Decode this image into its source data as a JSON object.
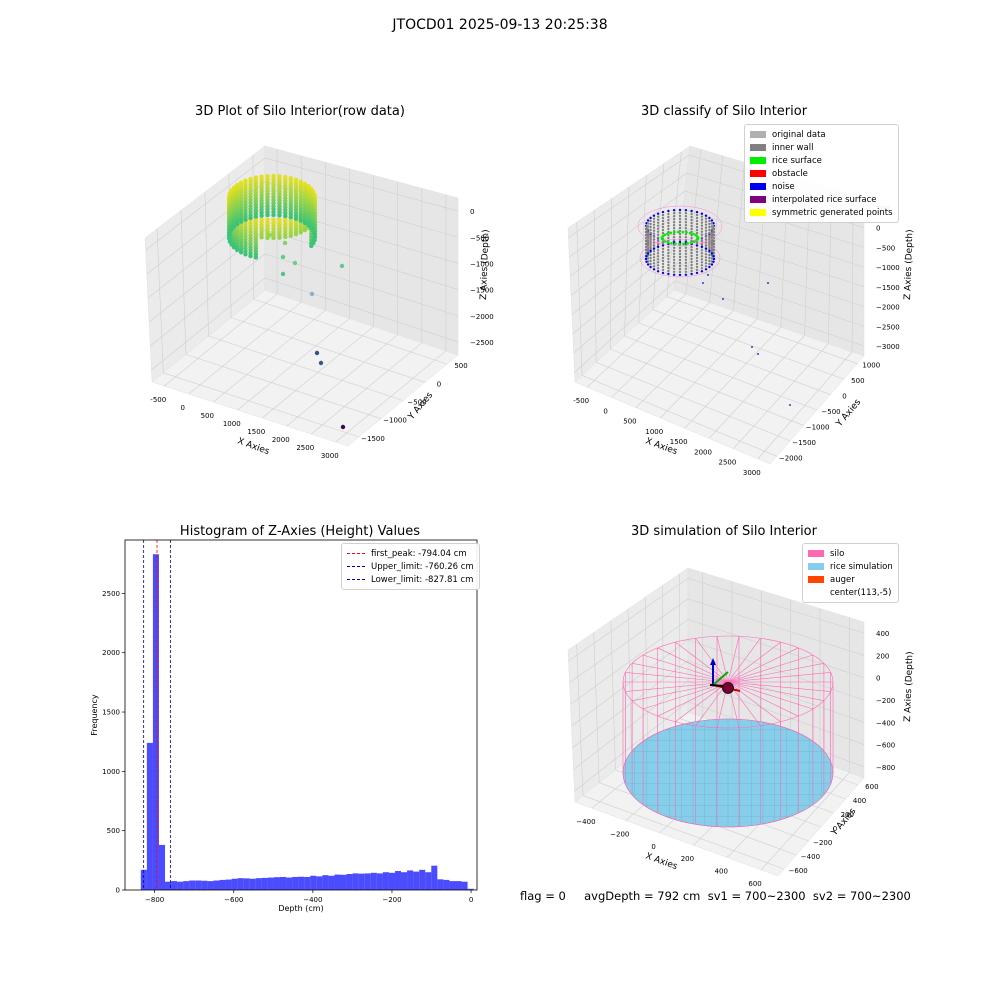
{
  "suptitle": "JTOCD01 2025-09-13 20:25:38",
  "footer": "flag = 0     avgDepth = 792 cm  sv1 = 700~2300  sv2 = 700~2300",
  "chart_data": [
    {
      "type": "scatter",
      "title": "3D Plot of Silo Interior(row data)",
      "xlabel": "X Axies",
      "ylabel": "Y Axies",
      "zlabel": "Z Axies (Depth)",
      "x_ticks": [
        "-500",
        "0",
        "500",
        "1000",
        "1500",
        "2000",
        "2500",
        "3000"
      ],
      "y_ticks": [
        "500",
        "0",
        "−500",
        "−1000",
        "−1500"
      ],
      "z_ticks": [
        "0",
        "−500",
        "−1000",
        "−1500",
        "−2000",
        "−2500"
      ],
      "xlim": [
        -600,
        3200
      ],
      "ylim": [
        -1700,
        700
      ],
      "zlim": [
        -2900,
        100
      ],
      "grid": true,
      "colormap": "viridis by depth"
    },
    {
      "type": "scatter",
      "title": "3D classify of Silo Interior",
      "xlabel": "X Axies",
      "ylabel": "Y Axies",
      "zlabel": "Z Axies (Depth)",
      "x_ticks": [
        "-500",
        "0",
        "500",
        "1000",
        "1500",
        "2000",
        "2500",
        "3000"
      ],
      "y_ticks": [
        "1000",
        "500",
        "0",
        "−500",
        "−1000",
        "−1500",
        "−2000"
      ],
      "z_ticks": [
        "500",
        "0",
        "−500",
        "−1000",
        "−1500",
        "−2000",
        "−2500",
        "−3000"
      ],
      "legend_position": "top-right",
      "legend": [
        {
          "name": "original data",
          "color": "#b0b0b0"
        },
        {
          "name": "inner wall",
          "color": "#808080"
        },
        {
          "name": "rice surface",
          "color": "#00ee00"
        },
        {
          "name": "obstacle",
          "color": "#ff0000"
        },
        {
          "name": "noise",
          "color": "#0000ee"
        },
        {
          "name": "interpolated rice surface",
          "color": "#800080"
        },
        {
          "name": "symmetric generated points",
          "color": "#ffff00"
        }
      ],
      "grid": true
    },
    {
      "type": "bar",
      "title": "Histogram of Z-Axies (Height) Values",
      "xlabel": "Depth (cm)",
      "ylabel": "Frequency",
      "xlim": [
        -875,
        15
      ],
      "ylim": [
        0,
        2950
      ],
      "x_ticks": [
        "−800",
        "−600",
        "−400",
        "−200",
        "0"
      ],
      "y_ticks": [
        "0",
        "500",
        "1000",
        "1500",
        "2000",
        "2500"
      ],
      "bin_width": 15.3,
      "bins_start": [
        -835,
        -819.7,
        -804.4,
        -789.1,
        -773.8,
        -758.5,
        -743.2,
        -727.9,
        -712.6,
        -697.3,
        -682,
        -666.7,
        -651.4,
        -636.1,
        -620.8,
        -605.5,
        -590.2,
        -574.9,
        -559.6,
        -544.3,
        -529,
        -513.7,
        -498.4,
        -483.1,
        -467.8,
        -452.5,
        -437.2,
        -421.9,
        -406.6,
        -391.3,
        -376,
        -360.7,
        -345.4,
        -330.1,
        -314.8,
        -299.5,
        -284.2,
        -268.9,
        -253.6,
        -238.3,
        -223,
        -207.7,
        -192.4,
        -177.1,
        -161.8,
        -146.5,
        -131.2,
        -115.9,
        -100.6,
        -85.3,
        -70,
        -54.7,
        -39.4,
        -24.1,
        -8.8
      ],
      "values": [
        170,
        1240,
        2830,
        380,
        70,
        75,
        70,
        75,
        80,
        80,
        78,
        75,
        80,
        85,
        88,
        95,
        100,
        98,
        95,
        100,
        102,
        105,
        108,
        110,
        105,
        110,
        112,
        110,
        120,
        115,
        125,
        120,
        130,
        128,
        135,
        140,
        138,
        140,
        145,
        140,
        150,
        145,
        160,
        150,
        165,
        155,
        170,
        150,
        205,
        90,
        85,
        75,
        75,
        70,
        10
      ],
      "bar_color": "#0000ff",
      "legend_position": "top-right",
      "lines": [
        {
          "name": "first_peak: -794.04 cm",
          "x": -794.04,
          "color": "#ff0000"
        },
        {
          "name": "Upper_limit: -760.26 cm",
          "x": -760.26,
          "color": "#0000aa"
        },
        {
          "name": "Lower_limit: -827.81 cm",
          "x": -827.81,
          "color": "#0000aa"
        }
      ]
    },
    {
      "type": "surface",
      "title": "3D simulation of Silo Interior",
      "xlabel": "X Axies",
      "ylabel": "Y Axies",
      "zlabel": "Z Axies (Depth)",
      "x_ticks": [
        "−400",
        "−200",
        "0",
        "200",
        "400",
        "600"
      ],
      "y_ticks": [
        "600",
        "400",
        "200",
        "0",
        "−200",
        "−400",
        "−600"
      ],
      "z_ticks": [
        "400",
        "200",
        "0",
        "−200",
        "−400",
        "−600",
        "−800"
      ],
      "legend_position": "top-right",
      "legend": [
        {
          "name": "silo",
          "color": "#ff69b4"
        },
        {
          "name": "rice simulation",
          "color": "#87ceeb"
        },
        {
          "name": "auger",
          "color": "#ff4500"
        },
        {
          "name": "center(113,-5)",
          "color": "#ffffff"
        }
      ],
      "grid": true
    }
  ]
}
